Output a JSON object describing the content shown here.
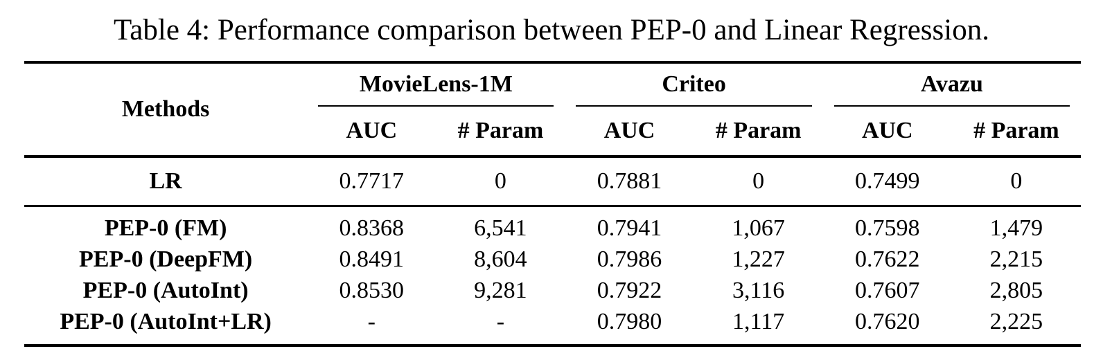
{
  "caption": "Table 4: Performance comparison between PEP-0 and Linear Regression.",
  "table": {
    "methods_header": "Methods",
    "groups": [
      {
        "name": "MovieLens-1M",
        "sub": [
          "AUC",
          "# Param"
        ]
      },
      {
        "name": "Criteo",
        "sub": [
          "AUC",
          "# Param"
        ]
      },
      {
        "name": "Avazu",
        "sub": [
          "AUC",
          "# Param"
        ]
      }
    ],
    "baseline_rows": [
      {
        "method": "LR",
        "cells": [
          "0.7717",
          "0",
          "0.7881",
          "0",
          "0.7499",
          "0"
        ]
      }
    ],
    "pep_rows": [
      {
        "method": "PEP-0 (FM)",
        "cells": [
          "0.8368",
          "6,541",
          "0.7941",
          "1,067",
          "0.7598",
          "1,479"
        ]
      },
      {
        "method": "PEP-0 (DeepFM)",
        "cells": [
          "0.8491",
          "8,604",
          "0.7986",
          "1,227",
          "0.7622",
          "2,215"
        ]
      },
      {
        "method": "PEP-0 (AutoInt)",
        "cells": [
          "0.8530",
          "9,281",
          "0.7922",
          "3,116",
          "0.7607",
          "2,805"
        ]
      },
      {
        "method": "PEP-0 (AutoInt+LR)",
        "cells": [
          "-",
          "-",
          "0.7980",
          "1,117",
          "0.7620",
          "2,225"
        ]
      }
    ],
    "colors": {
      "text": "#000000",
      "background": "#ffffff",
      "rule": "#000000"
    }
  },
  "chart_data": {
    "type": "table",
    "title": "Table 4: Performance comparison between PEP-0 and Linear Regression.",
    "columns": [
      "Methods",
      "MovieLens-1M AUC",
      "MovieLens-1M # Param",
      "Criteo AUC",
      "Criteo # Param",
      "Avazu AUC",
      "Avazu # Param"
    ],
    "rows": [
      [
        "LR",
        "0.7717",
        "0",
        "0.7881",
        "0",
        "0.7499",
        "0"
      ],
      [
        "PEP-0 (FM)",
        "0.8368",
        "6,541",
        "0.7941",
        "1,067",
        "0.7598",
        "1,479"
      ],
      [
        "PEP-0 (DeepFM)",
        "0.8491",
        "8,604",
        "0.7986",
        "1,227",
        "0.7622",
        "2,215"
      ],
      [
        "PEP-0 (AutoInt)",
        "0.8530",
        "9,281",
        "0.7922",
        "3,116",
        "0.7607",
        "2,805"
      ],
      [
        "PEP-0 (AutoInt+LR)",
        "-",
        "-",
        "0.7980",
        "1,117",
        "0.7620",
        "2,225"
      ]
    ]
  }
}
